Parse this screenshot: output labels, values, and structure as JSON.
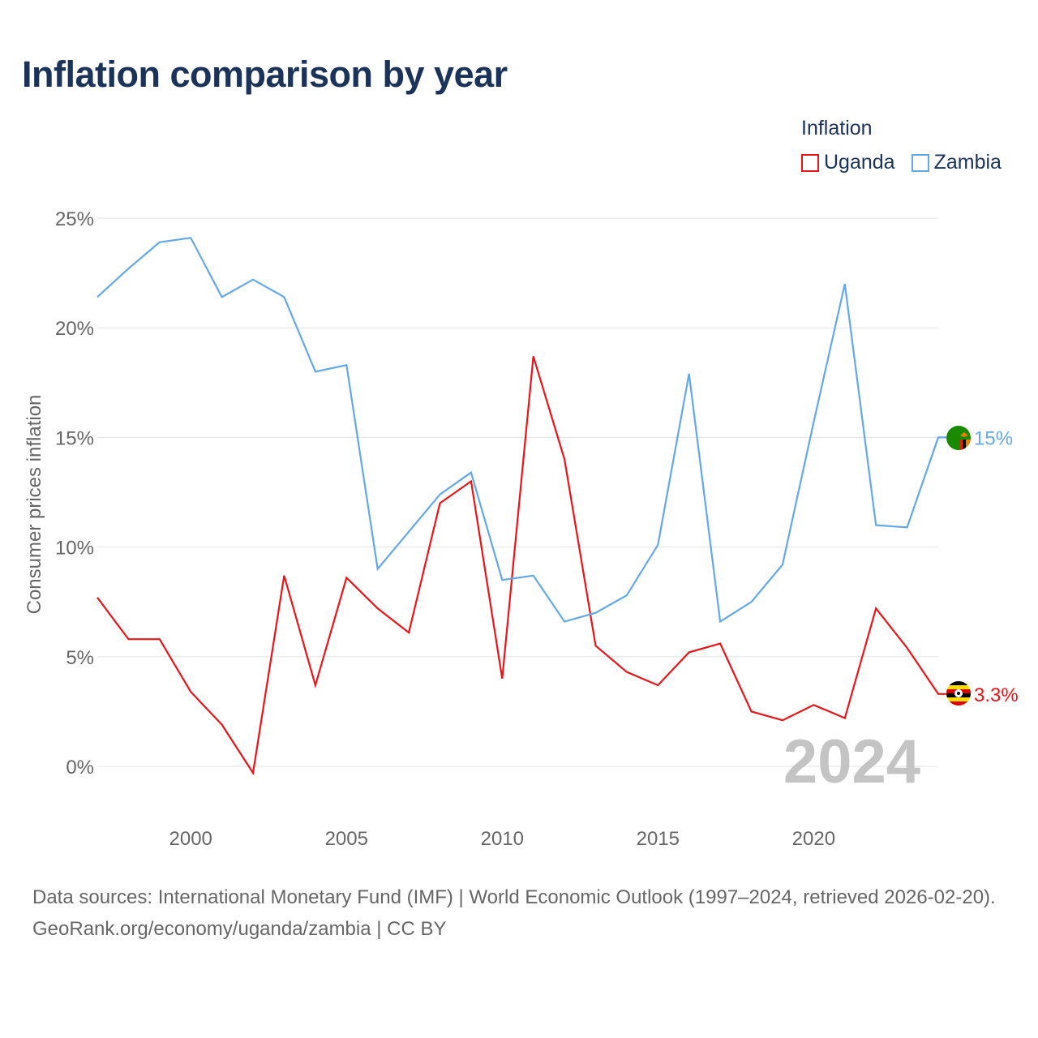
{
  "title": "Inflation comparison by year",
  "legend": {
    "title": "Inflation",
    "items": [
      {
        "label": "Uganda",
        "color": "#e8151b"
      },
      {
        "label": "Zambia",
        "color": "#64a8e4"
      }
    ]
  },
  "chart_data": {
    "type": "line",
    "title": "Inflation comparison by year",
    "xlabel": "",
    "ylabel": "Consumer prices inflation",
    "ylim": [
      0,
      25
    ],
    "xlim": [
      1997,
      2024
    ],
    "yticks": [
      "0%",
      "5%",
      "10%",
      "15%",
      "20%",
      "25%"
    ],
    "xticks": [
      "2000",
      "2005",
      "2010",
      "2015",
      "2020"
    ],
    "grid": true,
    "legend_position": "top-right",
    "watermark_year": "2024",
    "x": [
      1997,
      1998,
      1999,
      2000,
      2001,
      2002,
      2003,
      2004,
      2005,
      2006,
      2007,
      2008,
      2009,
      2010,
      2011,
      2012,
      2013,
      2014,
      2015,
      2016,
      2017,
      2018,
      2019,
      2020,
      2021,
      2022,
      2023,
      2024
    ],
    "series": [
      {
        "name": "Uganda",
        "color": "#e8151b",
        "end_label": "3.3%",
        "flag_icon": "uganda-flag-icon",
        "values": [
          7.7,
          5.8,
          5.8,
          3.4,
          1.9,
          -0.3,
          8.7,
          3.7,
          8.6,
          7.2,
          6.1,
          12.0,
          13.0,
          4.0,
          18.7,
          14.0,
          5.5,
          4.3,
          3.7,
          5.2,
          5.6,
          2.5,
          2.1,
          2.8,
          2.2,
          7.2,
          5.4,
          3.3
        ]
      },
      {
        "name": "Zambia",
        "color": "#64a8e4",
        "end_label": "15%",
        "flag_icon": "zambia-flag-icon",
        "values": [
          21.4,
          22.7,
          23.9,
          24.1,
          21.4,
          22.2,
          21.4,
          18.0,
          18.3,
          9.0,
          10.7,
          12.4,
          13.4,
          8.5,
          8.7,
          6.6,
          7.0,
          7.8,
          10.1,
          17.9,
          6.6,
          7.5,
          9.2,
          15.7,
          22.0,
          11.0,
          10.9,
          15.0
        ]
      }
    ]
  },
  "source": {
    "line1": "Data sources: International Monetary Fund (IMF) | World Economic Outlook (1997–2024, retrieved 2026-02-20).",
    "line2": "GeoRank.org/economy/uganda/zambia | CC BY"
  }
}
